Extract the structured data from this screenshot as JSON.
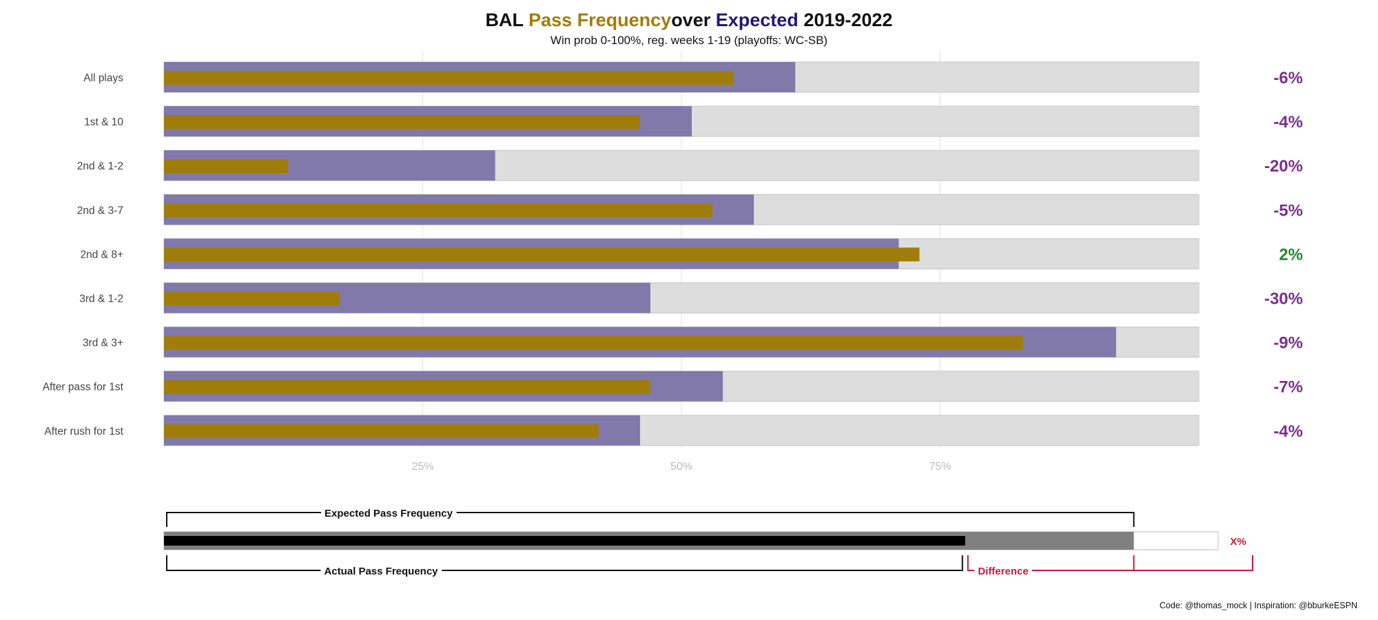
{
  "title": {
    "team": "BAL",
    "pass": "Pass",
    "frequency": "Frequency",
    "over": "over",
    "expected": "Expected",
    "years": "2019-2022"
  },
  "subtitle": "Win prob 0-100%, reg. weeks 1-19 (playoffs: WC-SB)",
  "credit": "Code: @thomas_mock | Inspiration: @bburkeESPN",
  "colors": {
    "actual": "#A07D0B",
    "expected": "#8079AA",
    "track": "#DDDDDD",
    "negative": "#7B2F8E",
    "positive": "#1E8B2F",
    "title_gold": "#A07D0B",
    "title_purple": "#241773",
    "legend_red": "#D4143C"
  },
  "chart_data": {
    "type": "bar",
    "title": "BAL Pass Frequency over Expected 2019-2022",
    "subtitle": "Win prob 0-100%, reg. weeks 1-19 (playoffs: WC-SB)",
    "xlim": [
      0,
      100
    ],
    "x_ticks": [
      25,
      50,
      75
    ],
    "x_tick_labels": [
      "25%",
      "50%",
      "75%"
    ],
    "categories": [
      "All plays",
      "1st & 10",
      "2nd & 1-2",
      "2nd & 3-7",
      "2nd & 8+",
      "3rd & 1-2",
      "3rd & 3+",
      "After pass for 1st",
      "After rush for 1st"
    ],
    "series": [
      {
        "name": "Expected Pass Frequency",
        "values": [
          61,
          51,
          32,
          57,
          71,
          47,
          92,
          54,
          46
        ]
      },
      {
        "name": "Actual Pass Frequency",
        "values": [
          55,
          46,
          12,
          53,
          73,
          17,
          83,
          47,
          42
        ]
      }
    ],
    "difference_labels": [
      "-6%",
      "-4%",
      "-20%",
      "-5%",
      "2%",
      "-30%",
      "-9%",
      "-7%",
      "-4%"
    ],
    "legend": {
      "expected_label": "Expected Pass Frequency",
      "actual_label": "Actual Pass Frequency",
      "difference_label": "Difference",
      "value_label": "X%",
      "example_actual": 76,
      "example_expected": 92
    }
  }
}
